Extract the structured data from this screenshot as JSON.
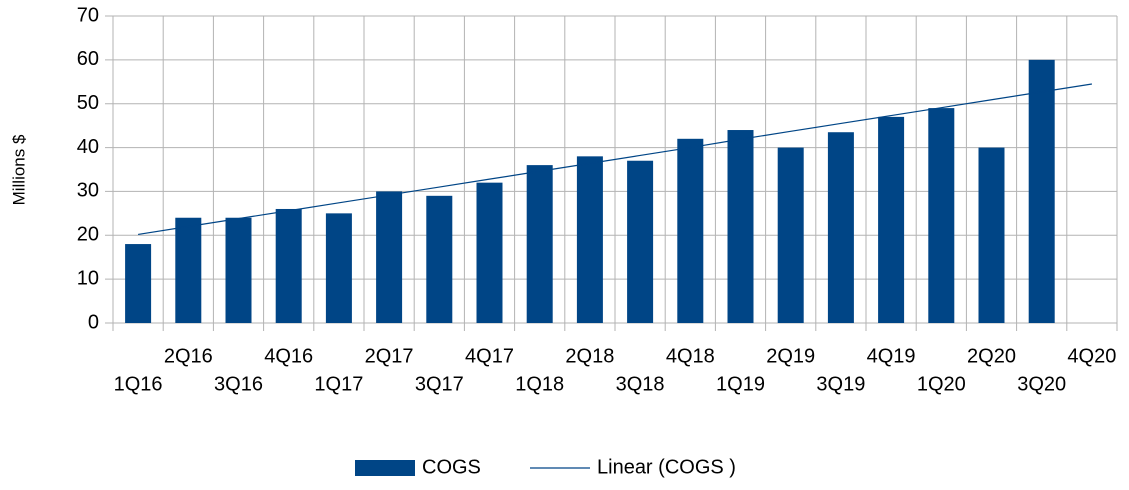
{
  "chart_data": {
    "type": "bar",
    "y_label": "Millions $",
    "categories": [
      "1Q16",
      "2Q16",
      "3Q16",
      "4Q16",
      "1Q17",
      "2Q17",
      "3Q17",
      "4Q17",
      "1Q18",
      "2Q18",
      "3Q18",
      "4Q18",
      "1Q19",
      "2Q19",
      "3Q19",
      "4Q19",
      "1Q20",
      "2Q20",
      "3Q20",
      "4Q20"
    ],
    "series": [
      {
        "name": "COGS",
        "color": "#004586",
        "type": "bar",
        "values": [
          18,
          24,
          24,
          26,
          25,
          30,
          29,
          32,
          36,
          38,
          37,
          42,
          44,
          40,
          43.5,
          47,
          49,
          40,
          60,
          null
        ]
      },
      {
        "name": "Linear (COGS )",
        "color": "#004586",
        "type": "line",
        "values": [
          20.2,
          22.0,
          23.8,
          25.6,
          27.4,
          29.2,
          31.0,
          32.8,
          34.6,
          36.4,
          38.2,
          40.0,
          41.9,
          43.7,
          45.5,
          47.3,
          49.1,
          50.9,
          52.7,
          54.5
        ]
      }
    ],
    "ylim": [
      0,
      70
    ],
    "yticks": [
      0,
      10,
      20,
      30,
      40,
      50,
      60,
      70
    ],
    "grid": true,
    "legend": "bottom"
  }
}
